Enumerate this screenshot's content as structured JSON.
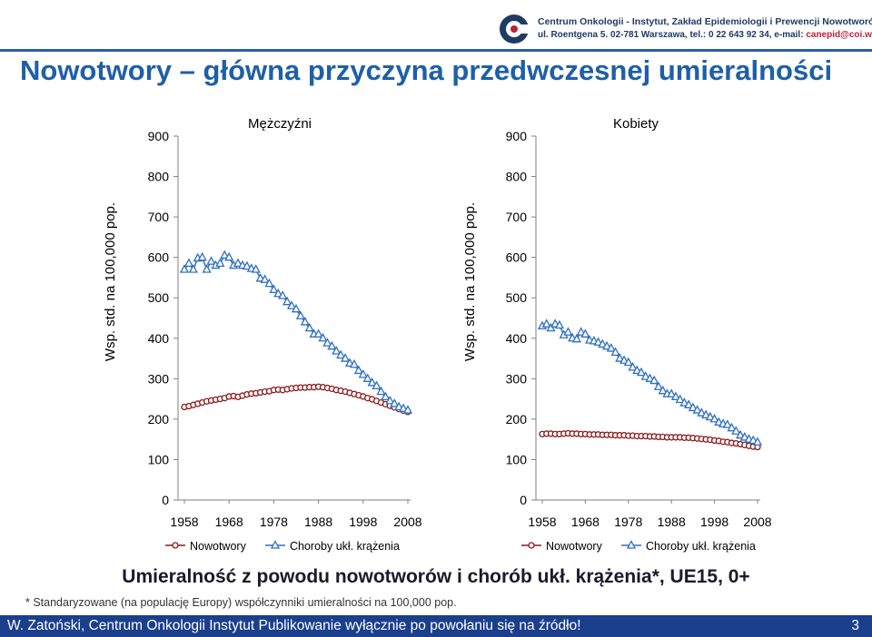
{
  "header": {
    "logo_line1": "Centrum Onkologii - Instytut, Zakład Epidemiologii i Prewencji Nowotworów",
    "logo_line2": "ul. Roentgena 5. 02-781 Warszawa, tel.: 0 22 643 92 34, e-mail:",
    "logo_email": "canepid@coi.waw.pl",
    "colors": {
      "brand_blue": "#1f5fa8",
      "brand_dark": "#1f3b63",
      "brand_red": "#c0203a",
      "footer_bar": "#1a3f8c"
    }
  },
  "title": "Nowotwory – główna przyczyna przedwczesnej umieralności",
  "subtitle": "Umieralność z powodu nowotworów i chorób ukł. krążenia*, UE15, 0+",
  "footnote": "* Standaryzowane (na populację Europy) współczynniki umieralności na 100,000 pop.",
  "footer": {
    "text": "W. Zatoński, Centrum Onkologii Instytut Publikowanie wyłącznie po powołaniu się na źródło!",
    "page_number": "3"
  },
  "chart_data": [
    {
      "type": "line",
      "title": "Mężczyźni",
      "xlabel": "",
      "ylabel": "Wsp. std. na 100,000 pop.",
      "xlim": [
        1958,
        2008
      ],
      "ylim": [
        0,
        900
      ],
      "y_ticks": [
        0,
        100,
        200,
        300,
        400,
        500,
        600,
        700,
        800,
        900
      ],
      "x_tick_labels": [
        "1958",
        "1968",
        "1978",
        "1988",
        "1998",
        "2008"
      ],
      "grid": false,
      "legend_position": "bottom",
      "series": [
        {
          "name": "Nowotwory",
          "color": "#8b1a1a",
          "marker": "circle",
          "x": [
            1958,
            1959,
            1960,
            1961,
            1962,
            1963,
            1964,
            1965,
            1966,
            1967,
            1968,
            1969,
            1970,
            1971,
            1972,
            1973,
            1974,
            1975,
            1976,
            1977,
            1978,
            1979,
            1980,
            1981,
            1982,
            1983,
            1984,
            1985,
            1986,
            1987,
            1988,
            1989,
            1990,
            1991,
            1992,
            1993,
            1994,
            1995,
            1996,
            1997,
            1998,
            1999,
            2000,
            2001,
            2002,
            2003,
            2004,
            2005,
            2006,
            2007,
            2008
          ],
          "values": [
            230,
            232,
            235,
            238,
            241,
            244,
            246,
            248,
            250,
            252,
            256,
            257,
            255,
            258,
            261,
            263,
            264,
            266,
            268,
            269,
            272,
            273,
            272,
            274,
            276,
            277,
            278,
            278,
            279,
            279,
            280,
            279,
            277,
            275,
            272,
            270,
            268,
            265,
            262,
            259,
            256,
            252,
            249,
            245,
            241,
            237,
            233,
            229,
            225,
            221,
            218
          ]
        },
        {
          "name": "Choroby ukł. krążenia",
          "color": "#2e6fc0",
          "marker": "triangle",
          "x": [
            1958,
            1959,
            1960,
            1961,
            1962,
            1963,
            1964,
            1965,
            1966,
            1967,
            1968,
            1969,
            1970,
            1971,
            1972,
            1973,
            1974,
            1975,
            1976,
            1977,
            1978,
            1979,
            1980,
            1981,
            1982,
            1983,
            1984,
            1985,
            1986,
            1987,
            1988,
            1989,
            1990,
            1991,
            1992,
            1993,
            1994,
            1995,
            1996,
            1997,
            1998,
            1999,
            2000,
            2001,
            2002,
            2003,
            2004,
            2005,
            2006,
            2007,
            2008
          ],
          "values": [
            570,
            585,
            570,
            598,
            600,
            570,
            590,
            580,
            585,
            605,
            600,
            580,
            585,
            580,
            578,
            572,
            570,
            548,
            545,
            535,
            520,
            510,
            505,
            490,
            480,
            472,
            455,
            440,
            425,
            410,
            410,
            400,
            388,
            380,
            368,
            358,
            350,
            338,
            335,
            320,
            310,
            300,
            290,
            282,
            268,
            255,
            245,
            238,
            230,
            226,
            222
          ]
        }
      ]
    },
    {
      "type": "line",
      "title": "Kobiety",
      "xlabel": "",
      "ylabel": "Wsp. std. na 100,000 pop.",
      "xlim": [
        1958,
        2008
      ],
      "ylim": [
        0,
        900
      ],
      "y_ticks": [
        0,
        100,
        200,
        300,
        400,
        500,
        600,
        700,
        800,
        900
      ],
      "x_tick_labels": [
        "1958",
        "1968",
        "1978",
        "1988",
        "1998",
        "2008"
      ],
      "grid": false,
      "legend_position": "bottom",
      "series": [
        {
          "name": "Nowotwory",
          "color": "#8b1a1a",
          "marker": "circle",
          "x": [
            1958,
            1959,
            1960,
            1961,
            1962,
            1963,
            1964,
            1965,
            1966,
            1967,
            1968,
            1969,
            1970,
            1971,
            1972,
            1973,
            1974,
            1975,
            1976,
            1977,
            1978,
            1979,
            1980,
            1981,
            1982,
            1983,
            1984,
            1985,
            1986,
            1987,
            1988,
            1989,
            1990,
            1991,
            1992,
            1993,
            1994,
            1995,
            1996,
            1997,
            1998,
            1999,
            2000,
            2001,
            2002,
            2003,
            2004,
            2005,
            2006,
            2007,
            2008
          ],
          "values": [
            163,
            164,
            164,
            163,
            163,
            164,
            165,
            164,
            164,
            163,
            163,
            162,
            162,
            162,
            161,
            161,
            161,
            160,
            160,
            160,
            159,
            159,
            158,
            158,
            158,
            157,
            157,
            156,
            156,
            155,
            155,
            155,
            155,
            154,
            154,
            153,
            152,
            151,
            150,
            149,
            147,
            146,
            144,
            143,
            141,
            140,
            138,
            136,
            134,
            132,
            131
          ]
        },
        {
          "name": "Choroby ukł. krążenia",
          "color": "#2e6fc0",
          "marker": "triangle",
          "x": [
            1958,
            1959,
            1960,
            1961,
            1962,
            1963,
            1964,
            1965,
            1966,
            1967,
            1968,
            1969,
            1970,
            1971,
            1972,
            1973,
            1974,
            1975,
            1976,
            1977,
            1978,
            1979,
            1980,
            1981,
            1982,
            1983,
            1984,
            1985,
            1986,
            1987,
            1988,
            1989,
            1990,
            1991,
            1992,
            1993,
            1994,
            1995,
            1996,
            1997,
            1998,
            1999,
            2000,
            2001,
            2002,
            2003,
            2004,
            2005,
            2006,
            2007,
            2008
          ],
          "values": [
            430,
            435,
            425,
            435,
            432,
            408,
            415,
            400,
            398,
            415,
            410,
            395,
            393,
            390,
            385,
            380,
            375,
            365,
            350,
            345,
            340,
            328,
            320,
            315,
            305,
            300,
            295,
            280,
            270,
            262,
            262,
            255,
            248,
            240,
            235,
            228,
            222,
            215,
            210,
            205,
            200,
            192,
            188,
            186,
            178,
            170,
            160,
            155,
            150,
            147,
            143
          ]
        }
      ]
    }
  ]
}
